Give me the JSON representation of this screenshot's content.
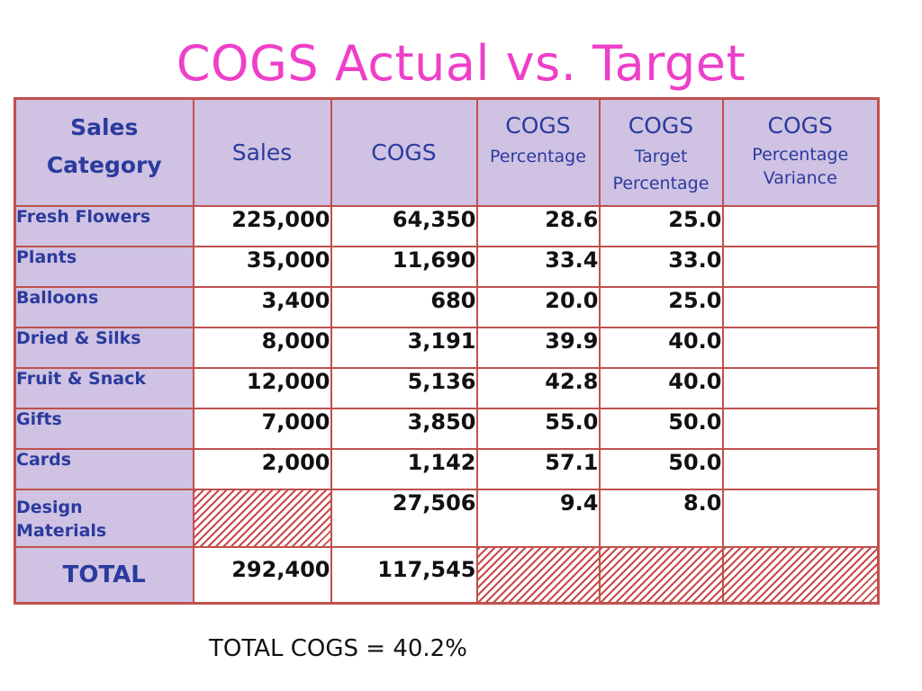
{
  "title": "COGS Actual vs. Target",
  "table": {
    "headers": {
      "category": [
        "Sales",
        "Category"
      ],
      "sales": "Sales",
      "cogs": "COGS",
      "cogs_pct": [
        "COGS",
        "Percentage"
      ],
      "target_pct": [
        "COGS",
        "Target",
        "Percentage"
      ],
      "variance": [
        "COGS",
        "Percentage",
        "Variance"
      ]
    },
    "rows": [
      {
        "category": "Fresh Flowers",
        "sales": "225,000",
        "cogs": "64,350",
        "cogs_pct": "28.6",
        "target_pct": "25.0",
        "variance": ""
      },
      {
        "category": "Plants",
        "sales": "35,000",
        "cogs": "11,690",
        "cogs_pct": "33.4",
        "target_pct": "33.0",
        "variance": ""
      },
      {
        "category": "Balloons",
        "sales": "3,400",
        "cogs": "680",
        "cogs_pct": "20.0",
        "target_pct": "25.0",
        "variance": ""
      },
      {
        "category": "Dried & Silks",
        "sales": "8,000",
        "cogs": "3,191",
        "cogs_pct": "39.9",
        "target_pct": "40.0",
        "variance": ""
      },
      {
        "category": "Fruit & Snack",
        "sales": "12,000",
        "cogs": "5,136",
        "cogs_pct": "42.8",
        "target_pct": "40.0",
        "variance": ""
      },
      {
        "category": "Gifts",
        "sales": "7,000",
        "cogs": "3,850",
        "cogs_pct": "55.0",
        "target_pct": "50.0",
        "variance": ""
      },
      {
        "category": "Cards",
        "sales": "2,000",
        "cogs": "1,142",
        "cogs_pct": "57.1",
        "target_pct": "50.0",
        "variance": ""
      }
    ],
    "design_row": {
      "category": [
        "Design",
        "Materials"
      ],
      "cogs": "27,506",
      "cogs_pct": "9.4",
      "target_pct": "8.0",
      "variance": ""
    },
    "total_row": {
      "label": "TOTAL",
      "sales": "292,400",
      "cogs": "117,545"
    }
  },
  "footer": "TOTAL COGS = 40.2%"
}
